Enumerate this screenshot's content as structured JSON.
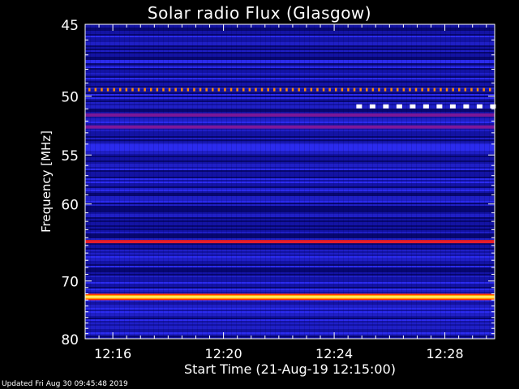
{
  "footer": {
    "updated": "Updated Fri Aug 30 09:45:48 2019"
  },
  "chart_data": {
    "type": "heatmap",
    "title": "Solar radio Flux (Glasgow)",
    "xlabel": "Start Time (21-Aug-19 12:15:00)",
    "ylabel": "Frequency [MHz]",
    "y_ticks": [
      45,
      50,
      55,
      60,
      70,
      80
    ],
    "y_scale": "reciprocal",
    "ylim": [
      45,
      80
    ],
    "x_ticks": [
      "12:16",
      "12:20",
      "12:24",
      "12:28"
    ],
    "x_tick_minutes": [
      16,
      20,
      24,
      28
    ],
    "xlim_minutes": [
      15.0,
      29.8
    ],
    "colormap": [
      "#000000",
      "#0a0a8c",
      "#2a2aff",
      "#8a1a9a",
      "#ff2020",
      "#ff8a00",
      "#ffff60",
      "#ffffff"
    ],
    "bands": [
      {
        "freq": 49.5,
        "level": 0.75,
        "pattern": "dotted"
      },
      {
        "freq": 50.8,
        "level": 0.95,
        "pattern": "dashed",
        "from_minute": 24.8
      },
      {
        "freq": 51.5,
        "level": 0.45
      },
      {
        "freq": 52.5,
        "level": 0.4
      },
      {
        "freq": 64.5,
        "level": 0.5
      },
      {
        "freq": 72.5,
        "level": 1.0
      }
    ]
  }
}
